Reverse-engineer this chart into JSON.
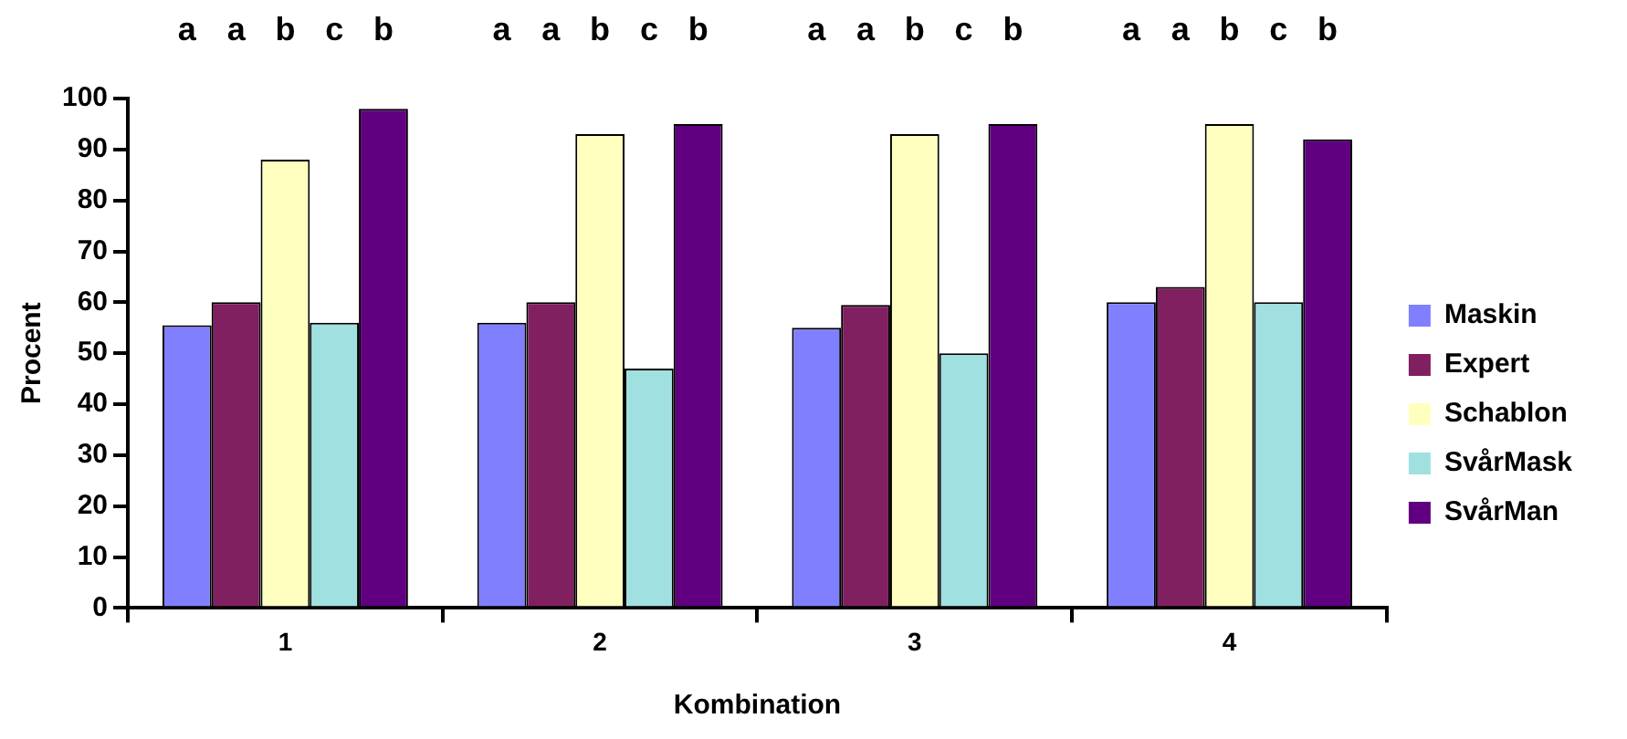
{
  "chart_data": {
    "type": "bar",
    "xlabel": "Kombination",
    "ylabel": "Procent",
    "categories": [
      "1",
      "2",
      "3",
      "4"
    ],
    "ylim": [
      0,
      100
    ],
    "yticks": [
      0,
      10,
      20,
      30,
      40,
      50,
      60,
      70,
      80,
      90,
      100
    ],
    "grid": false,
    "legend": "right",
    "annotations": [
      "a",
      "a",
      "b",
      "c",
      "b",
      "a",
      "a",
      "b",
      "c",
      "b",
      "a",
      "a",
      "b",
      "c",
      "b",
      "a",
      "a",
      "b",
      "c",
      "b"
    ],
    "series": [
      {
        "name": "Maskin",
        "color": "#8080ff",
        "values": [
          55.5,
          56,
          55,
          60
        ]
      },
      {
        "name": "Expert",
        "color": "#802060",
        "values": [
          60,
          60,
          59.5,
          63
        ]
      },
      {
        "name": "Schablon",
        "color": "#ffffc0",
        "values": [
          88,
          93,
          93,
          95
        ]
      },
      {
        "name": "SvårMask",
        "color": "#a0e0e0",
        "values": [
          56,
          47,
          50,
          60
        ]
      },
      {
        "name": "SvårMan",
        "color": "#600080",
        "values": [
          98,
          95,
          95,
          92
        ]
      }
    ]
  }
}
